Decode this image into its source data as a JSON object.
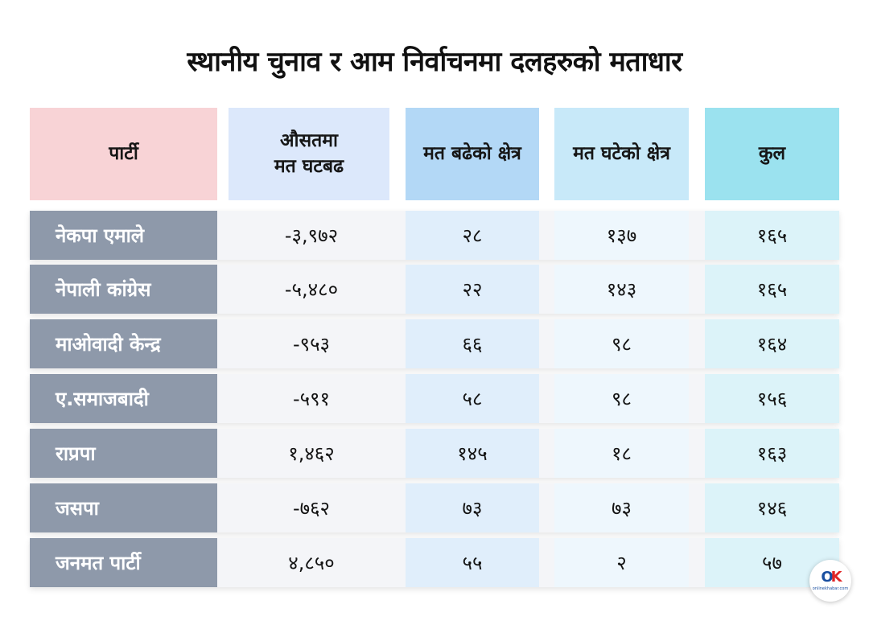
{
  "title": "स्थानीय चुनाव र आम निर्वाचनमा दलहरुको मताधार",
  "headers": {
    "party": "पार्टी",
    "avg_line1": "औसतमा",
    "avg_line2": "मत घटबढ",
    "increased": "मत बढेको क्षेत्र",
    "decreased": "मत घटेको क्षेत्र",
    "total": "कुल"
  },
  "rows": [
    {
      "party": "नेकपा एमाले",
      "avg": "-३,९७२",
      "increased": "२८",
      "decreased": "१३७",
      "total": "१६५"
    },
    {
      "party": "नेपाली कांग्रेस",
      "avg": "-५,४८०",
      "increased": "२२",
      "decreased": "१४३",
      "total": "१६५"
    },
    {
      "party": "माओवादी केन्द्र",
      "avg": "-९५३",
      "increased": "६६",
      "decreased": "९८",
      "total": "१६४"
    },
    {
      "party": "ए.समाजबादी",
      "avg": "-५९१",
      "increased": "५८",
      "decreased": "९८",
      "total": "१५६"
    },
    {
      "party": "राप्रपा",
      "avg": "१,४६२",
      "increased": "१४५",
      "decreased": "१८",
      "total": "१६३"
    },
    {
      "party": "जसपा",
      "avg": "-७६२",
      "increased": "७३",
      "decreased": "७३",
      "total": "१४६"
    },
    {
      "party": "जनमत पार्टी",
      "avg": "४,८५०",
      "increased": "५५",
      "decreased": "२",
      "total": "५७"
    }
  ],
  "colors": {
    "party_header": "#f8d3d6",
    "avg_header": "#dce8fb",
    "increased_header": "#b3d8f6",
    "decreased_header": "#c8e9f9",
    "total_header": "#9be2ef",
    "party_cell": "#8e99aa",
    "increased_cell": "#e0eefb",
    "decreased_cell": "#eef7fd",
    "total_cell": "#dcf3f9"
  },
  "logo": {
    "mark_o": "O",
    "mark_k": "K",
    "text": "onlinekhabar.com"
  }
}
